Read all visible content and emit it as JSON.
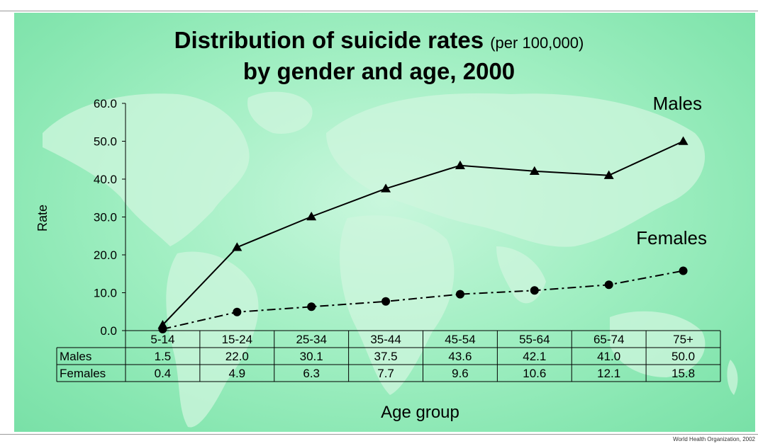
{
  "title": {
    "main": "Distribution of suicide rates",
    "unit": "(per 100,000)",
    "line2": "by gender and age, 2000"
  },
  "credit": "World Health Organization, 2002",
  "colors": {
    "background": "#8fe9b8",
    "map": "#ccf5dc",
    "lines": "#000000"
  },
  "chart_data": {
    "type": "line",
    "xlabel": "Age group",
    "ylabel": "Rate",
    "ylim": [
      0,
      60
    ],
    "yticks": [
      "0.0",
      "10.0",
      "20.0",
      "30.0",
      "40.0",
      "50.0",
      "60.0"
    ],
    "grid": false,
    "categories": [
      "5-14",
      "15-24",
      "25-34",
      "35-44",
      "45-54",
      "55-64",
      "65-74",
      "75+"
    ],
    "series": [
      {
        "name": "Males",
        "marker": "triangle",
        "line_style": "solid",
        "values": [
          1.5,
          22.0,
          30.1,
          37.5,
          43.6,
          42.1,
          41.0,
          50.0
        ],
        "table_values": [
          "1.5",
          "22.0",
          "30.1",
          "37.5",
          "43.6",
          "42.1",
          "41.0",
          "50.0"
        ]
      },
      {
        "name": "Females",
        "marker": "circle",
        "line_style": "dash-dot",
        "values": [
          0.4,
          4.9,
          6.3,
          7.7,
          9.6,
          10.6,
          12.1,
          15.8
        ],
        "table_values": [
          "0.4",
          "4.9",
          "6.3",
          "7.7",
          "9.6",
          "10.6",
          "12.1",
          "15.8"
        ]
      }
    ]
  }
}
